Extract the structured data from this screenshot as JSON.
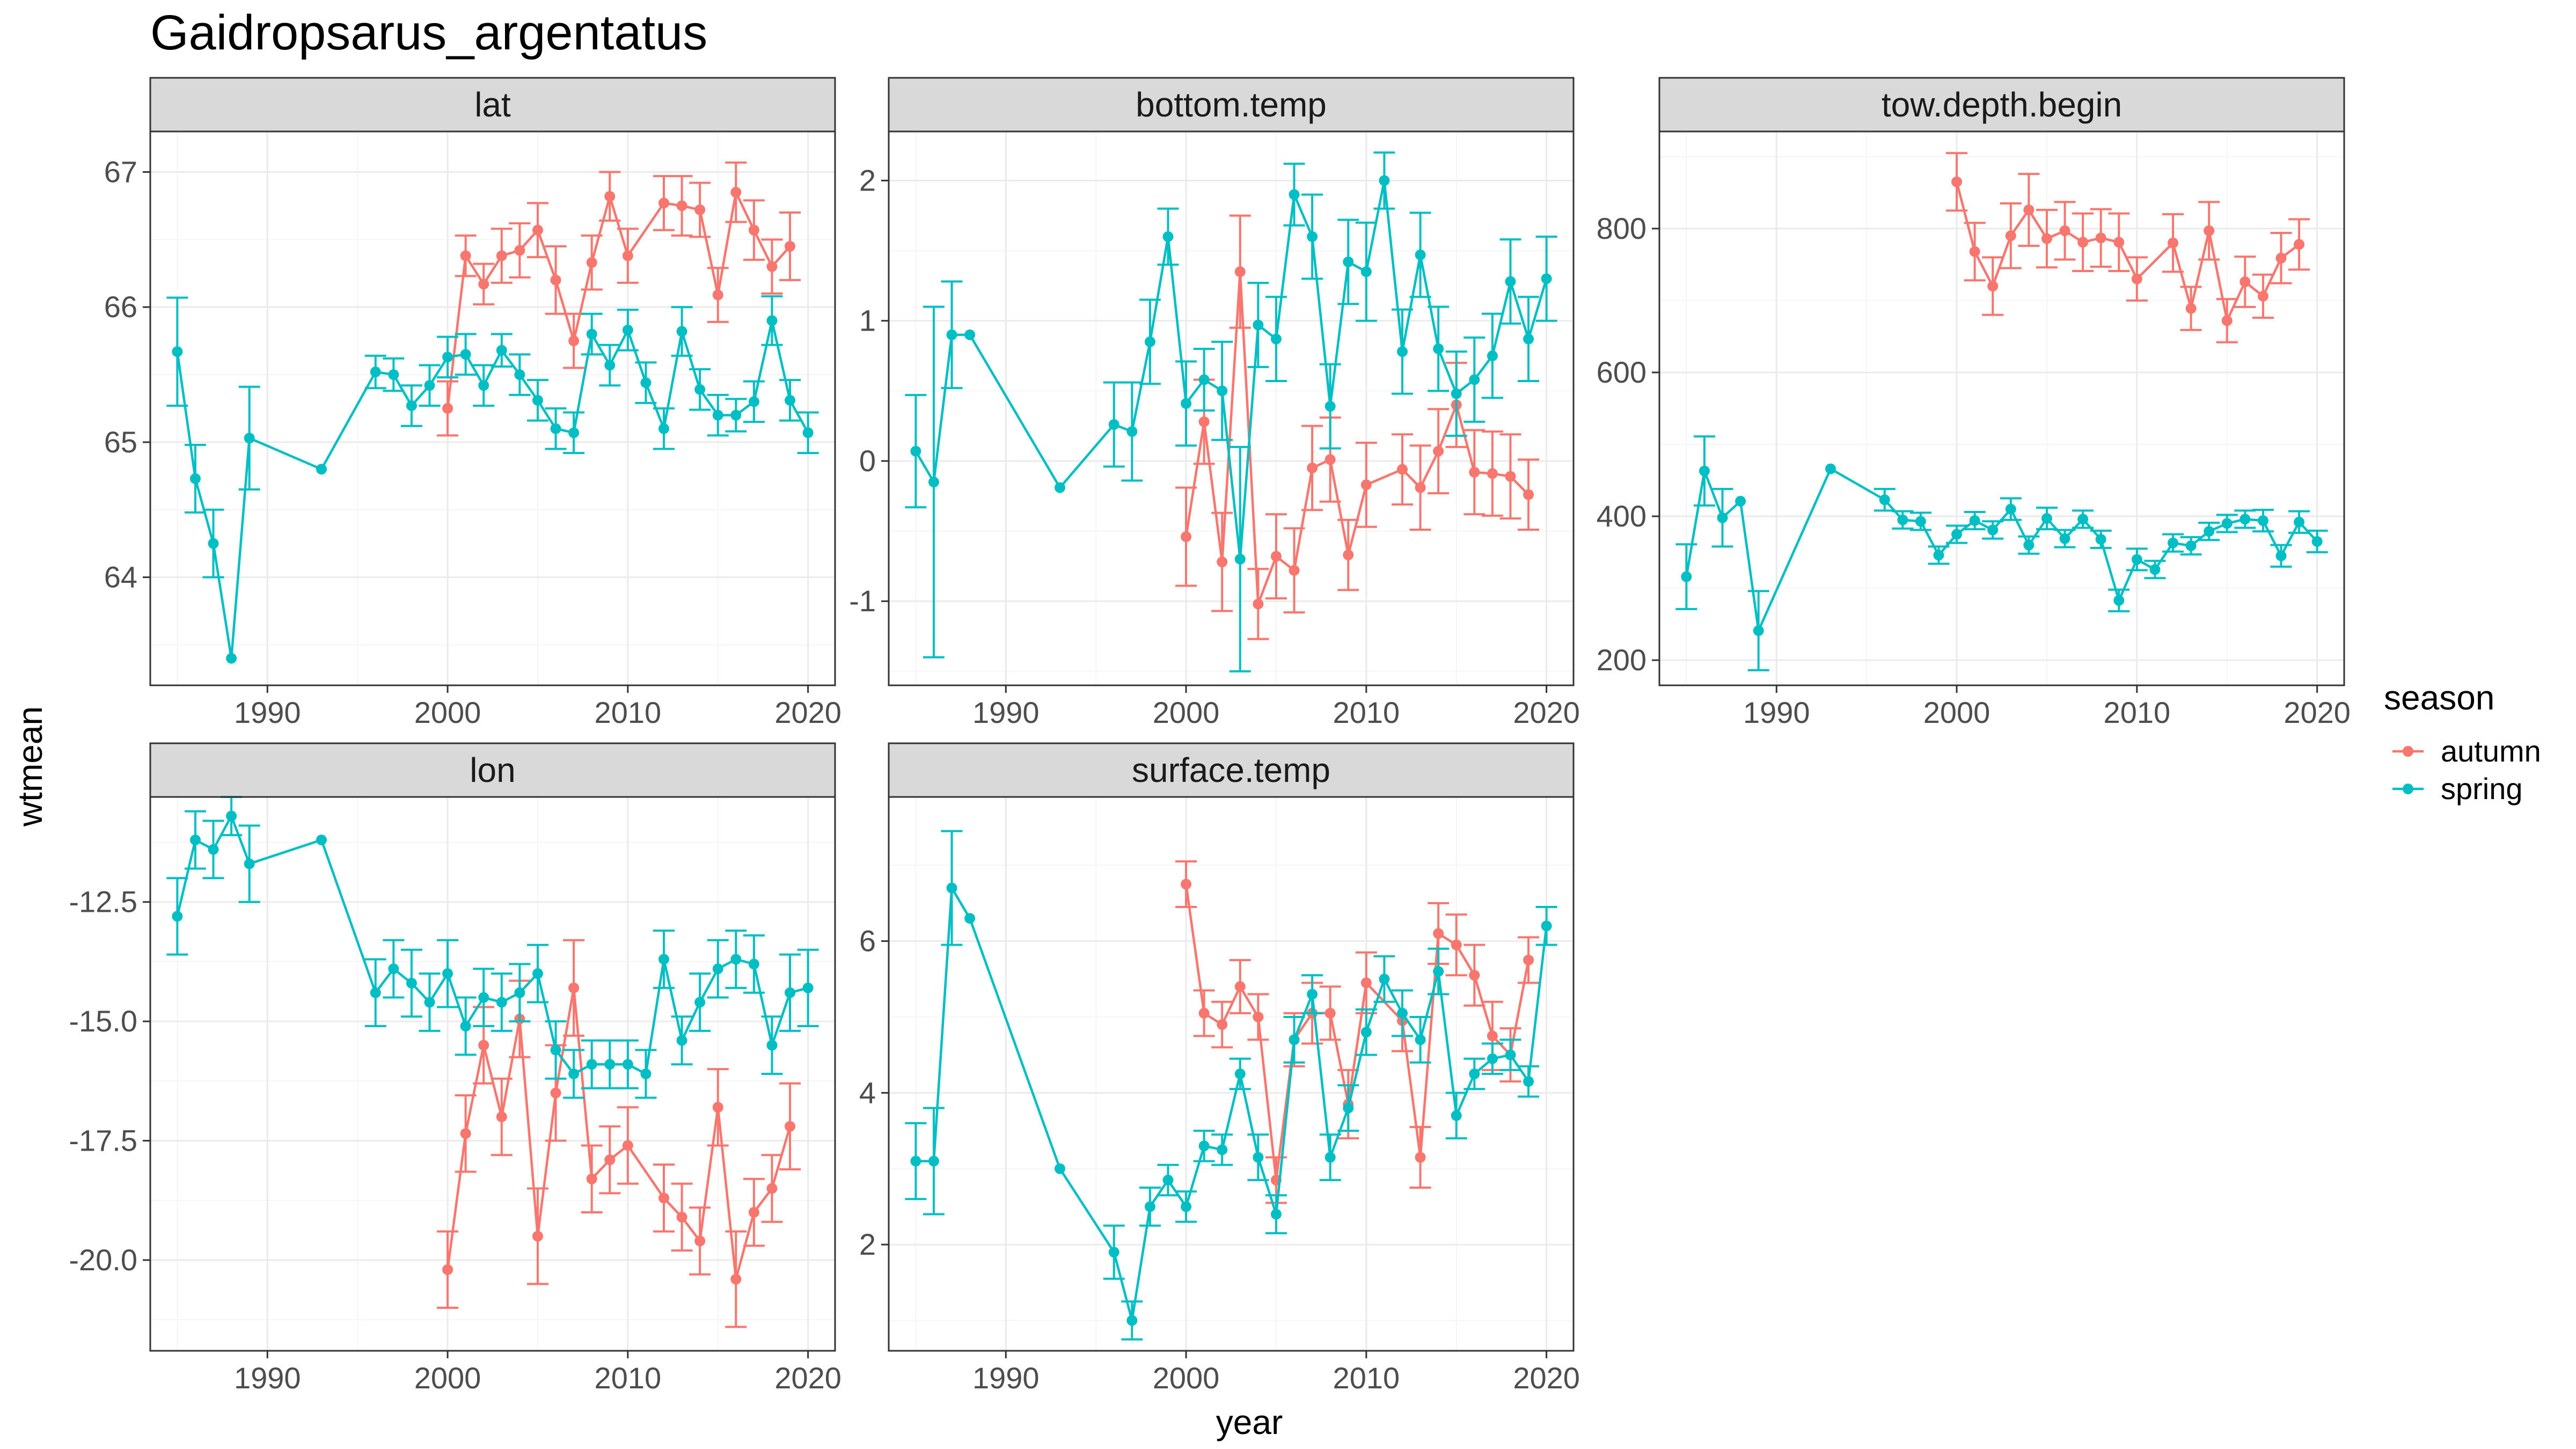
{
  "title": "Gaidropsarus_argentatus",
  "colors": {
    "autumn": "#F8766D",
    "spring": "#00BFC4"
  },
  "chart_data": {
    "type": "line",
    "title": "Gaidropsarus_argentatus",
    "xlabel": "year",
    "ylabel": "wtmean",
    "legend": {
      "title": "season",
      "position": "right",
      "entries": [
        "autumn",
        "spring"
      ]
    },
    "grid": true,
    "facets": [
      {
        "name": "lat",
        "xlim": [
          1983.5,
          2021.5
        ],
        "xticks": [
          1990,
          2000,
          2010,
          2020
        ],
        "ylim": [
          63.2,
          67.3
        ],
        "yticks": [
          64,
          65,
          66,
          67
        ],
        "ytick_labels": [
          "64",
          "65",
          "66",
          "67"
        ],
        "series": [
          {
            "name": "autumn",
            "x": [
              2000,
              2001,
              2002,
              2003,
              2004,
              2005,
              2006,
              2007,
              2008,
              2009,
              2010,
              2012,
              2013,
              2014,
              2015,
              2016,
              2017,
              2018,
              2019
            ],
            "y": [
              65.25,
              66.38,
              66.17,
              66.38,
              66.42,
              66.57,
              66.2,
              65.75,
              66.33,
              66.82,
              66.38,
              66.77,
              66.75,
              66.72,
              66.09,
              66.85,
              66.57,
              66.3,
              66.45
            ],
            "err": [
              0.2,
              0.15,
              0.15,
              0.2,
              0.2,
              0.2,
              0.25,
              0.2,
              0.2,
              0.18,
              0.2,
              0.2,
              0.22,
              0.2,
              0.2,
              0.22,
              0.22,
              0.2,
              0.25
            ]
          },
          {
            "name": "spring",
            "x": [
              1985,
              1986,
              1987,
              1988,
              1989,
              1993,
              1996,
              1997,
              1998,
              1999,
              2000,
              2001,
              2002,
              2003,
              2004,
              2005,
              2006,
              2007,
              2008,
              2009,
              2010,
              2011,
              2012,
              2013,
              2014,
              2015,
              2016,
              2017,
              2018,
              2019,
              2020
            ],
            "y": [
              65.67,
              64.73,
              64.25,
              63.4,
              65.03,
              64.8,
              65.52,
              65.5,
              65.27,
              65.42,
              65.63,
              65.65,
              65.42,
              65.68,
              65.5,
              65.31,
              65.1,
              65.07,
              65.8,
              65.57,
              65.83,
              65.44,
              65.1,
              65.82,
              65.39,
              65.2,
              65.2,
              65.3,
              65.9,
              65.31,
              65.07
            ],
            "err": [
              0.4,
              0.25,
              0.25,
              0,
              0.38,
              0,
              0.12,
              0.12,
              0.15,
              0.15,
              0.15,
              0.15,
              0.15,
              0.12,
              0.15,
              0.15,
              0.15,
              0.15,
              0.15,
              0.15,
              0.15,
              0.15,
              0.15,
              0.18,
              0.15,
              0.15,
              0.12,
              0.15,
              0.18,
              0.15,
              0.15
            ]
          }
        ]
      },
      {
        "name": "bottom.temp",
        "xlim": [
          1983.5,
          2021.5
        ],
        "xticks": [
          1990,
          2000,
          2010,
          2020
        ],
        "ylim": [
          -1.6,
          2.35
        ],
        "yticks": [
          -1,
          0,
          1,
          2
        ],
        "ytick_labels": [
          "-1",
          "0",
          "1",
          "2"
        ],
        "series": [
          {
            "name": "autumn",
            "x": [
              2000,
              2001,
              2002,
              2003,
              2004,
              2005,
              2006,
              2007,
              2008,
              2009,
              2010,
              2012,
              2013,
              2014,
              2015,
              2016,
              2017,
              2018,
              2019
            ],
            "y": [
              -0.54,
              0.28,
              -0.72,
              1.35,
              -1.02,
              -0.68,
              -0.78,
              -0.05,
              0.01,
              -0.67,
              -0.17,
              -0.06,
              -0.19,
              0.07,
              0.4,
              -0.08,
              -0.09,
              -0.11,
              -0.24
            ],
            "err": [
              0.35,
              0.3,
              0.35,
              0.4,
              0.25,
              0.3,
              0.3,
              0.3,
              0.3,
              0.25,
              0.3,
              0.25,
              0.3,
              0.3,
              0.3,
              0.3,
              0.3,
              0.3,
              0.25
            ]
          },
          {
            "name": "spring",
            "x": [
              1985,
              1986,
              1987,
              1988,
              1993,
              1996,
              1997,
              1998,
              1999,
              2000,
              2001,
              2002,
              2003,
              2004,
              2005,
              2006,
              2007,
              2008,
              2009,
              2010,
              2011,
              2012,
              2013,
              2014,
              2015,
              2016,
              2017,
              2018,
              2019,
              2020
            ],
            "y": [
              0.07,
              -0.15,
              0.9,
              0.9,
              -0.19,
              0.26,
              0.21,
              0.85,
              1.6,
              0.41,
              0.58,
              0.5,
              -0.7,
              0.97,
              0.87,
              1.9,
              1.6,
              0.39,
              1.42,
              1.35,
              2.0,
              0.78,
              1.47,
              0.8,
              0.48,
              0.58,
              0.75,
              1.28,
              0.87,
              1.3
            ],
            "err": [
              0.4,
              1.25,
              0.38,
              0,
              0,
              0.3,
              0.35,
              0.3,
              0.2,
              0.3,
              0.22,
              0.35,
              0.8,
              0.3,
              0.3,
              0.22,
              0.3,
              0.3,
              0.3,
              0.35,
              0.2,
              0.3,
              0.3,
              0.3,
              0.3,
              0.3,
              0.3,
              0.3,
              0.3,
              0.3
            ]
          }
        ]
      },
      {
        "name": "tow.depth.begin",
        "xlim": [
          1983.5,
          2021.5
        ],
        "xticks": [
          1990,
          2000,
          2010,
          2020
        ],
        "ylim": [
          165,
          935
        ],
        "yticks": [
          200,
          400,
          600,
          800
        ],
        "ytick_labels": [
          "200",
          "400",
          "600",
          "800"
        ],
        "series": [
          {
            "name": "autumn",
            "x": [
              2000,
              2001,
              2002,
              2003,
              2004,
              2005,
              2006,
              2007,
              2008,
              2009,
              2010,
              2012,
              2013,
              2014,
              2015,
              2016,
              2017,
              2018,
              2019
            ],
            "y": [
              865,
              768,
              720,
              790,
              826,
              786,
              797,
              781,
              787,
              781,
              730,
              780,
              689,
              797,
              672,
              726,
              706,
              759,
              778
            ],
            "err": [
              40,
              40,
              40,
              45,
              50,
              40,
              40,
              40,
              40,
              40,
              30,
              40,
              30,
              40,
              30,
              35,
              30,
              35,
              35
            ]
          },
          {
            "name": "spring",
            "x": [
              1985,
              1986,
              1987,
              1988,
              1989,
              1993,
              1996,
              1997,
              1998,
              1999,
              2000,
              2001,
              2002,
              2003,
              2004,
              2005,
              2006,
              2007,
              2008,
              2009,
              2010,
              2011,
              2012,
              2013,
              2014,
              2015,
              2016,
              2017,
              2018,
              2019,
              2020
            ],
            "y": [
              316,
              463,
              398,
              421,
              241,
              466,
              423,
              395,
              393,
              346,
              375,
              394,
              381,
              410,
              360,
              397,
              369,
              396,
              368,
              283,
              340,
              326,
              363,
              359,
              379,
              390,
              396,
              394,
              345,
              392,
              365
            ],
            "err": [
              45,
              48,
              40,
              0,
              55,
              0,
              15,
              12,
              12,
              12,
              12,
              12,
              12,
              15,
              12,
              15,
              12,
              12,
              12,
              15,
              15,
              12,
              12,
              12,
              12,
              12,
              12,
              15,
              15,
              15,
              15
            ]
          }
        ]
      },
      {
        "name": "lon",
        "xlim": [
          1983.5,
          2021.5
        ],
        "xticks": [
          1990,
          2000,
          2010,
          2020
        ],
        "ylim": [
          -21.9,
          -10.3
        ],
        "yticks": [
          -20,
          -17.5,
          -15,
          -12.5
        ],
        "ytick_labels": [
          "-20.0",
          "-17.5",
          "-15.0",
          "-12.5"
        ],
        "series": [
          {
            "name": "autumn",
            "x": [
              2000,
              2001,
              2002,
              2003,
              2004,
              2005,
              2006,
              2007,
              2008,
              2009,
              2010,
              2012,
              2013,
              2014,
              2015,
              2016,
              2017,
              2018,
              2019
            ],
            "y": [
              -20.2,
              -17.35,
              -15.5,
              -17.0,
              -14.95,
              -19.5,
              -16.5,
              -14.3,
              -18.3,
              -17.9,
              -17.6,
              -18.7,
              -19.1,
              -19.6,
              -16.8,
              -20.4,
              -19.0,
              -18.5,
              -17.2
            ],
            "err": [
              0.8,
              0.8,
              0.8,
              0.8,
              0.8,
              1.0,
              1.0,
              1.0,
              0.7,
              0.7,
              0.8,
              0.7,
              0.7,
              0.7,
              0.8,
              1.0,
              0.7,
              0.7,
              0.9
            ]
          },
          {
            "name": "spring",
            "x": [
              1985,
              1986,
              1987,
              1988,
              1989,
              1993,
              1996,
              1997,
              1998,
              1999,
              2000,
              2001,
              2002,
              2003,
              2004,
              2005,
              2006,
              2007,
              2008,
              2009,
              2010,
              2011,
              2012,
              2013,
              2014,
              2015,
              2016,
              2017,
              2018,
              2019,
              2020
            ],
            "y": [
              -12.8,
              -11.2,
              -11.4,
              -10.7,
              -11.7,
              -11.2,
              -14.4,
              -13.9,
              -14.2,
              -14.6,
              -14.0,
              -15.1,
              -14.5,
              -14.6,
              -14.4,
              -14.0,
              -15.6,
              -16.1,
              -15.9,
              -15.9,
              -15.9,
              -16.1,
              -13.7,
              -15.4,
              -14.6,
              -13.9,
              -13.7,
              -13.8,
              -15.5,
              -14.4,
              -14.3
            ],
            "err": [
              0.8,
              0.6,
              0.6,
              0.4,
              0.8,
              0,
              0.7,
              0.6,
              0.7,
              0.6,
              0.7,
              0.6,
              0.6,
              0.6,
              0.6,
              0.6,
              0.6,
              0.5,
              0.5,
              0.5,
              0.5,
              0.5,
              0.6,
              0.5,
              0.6,
              0.6,
              0.6,
              0.6,
              0.6,
              0.8,
              0.8
            ]
          }
        ]
      },
      {
        "name": "surface.temp",
        "xlim": [
          1983.5,
          2021.5
        ],
        "xticks": [
          1990,
          2000,
          2010,
          2020
        ],
        "ylim": [
          0.6,
          7.9
        ],
        "yticks": [
          2,
          4,
          6
        ],
        "ytick_labels": [
          "2",
          "4",
          "6"
        ],
        "series": [
          {
            "name": "autumn",
            "x": [
              2000,
              2001,
              2002,
              2003,
              2004,
              2005,
              2006,
              2007,
              2008,
              2009,
              2010,
              2012,
              2013,
              2014,
              2015,
              2016,
              2017,
              2018,
              2019
            ],
            "y": [
              6.75,
              5.05,
              4.9,
              5.4,
              5.0,
              2.85,
              4.7,
              5.05,
              5.05,
              3.85,
              5.45,
              4.95,
              3.15,
              6.1,
              5.95,
              5.55,
              4.75,
              4.5,
              5.75
            ],
            "err": [
              0.3,
              0.3,
              0.3,
              0.35,
              0.3,
              0.3,
              0.35,
              0.4,
              0.35,
              0.45,
              0.4,
              0.4,
              0.4,
              0.4,
              0.4,
              0.4,
              0.45,
              0.35,
              0.3
            ]
          },
          {
            "name": "spring",
            "x": [
              1985,
              1986,
              1987,
              1988,
              1993,
              1996,
              1997,
              1998,
              1999,
              2000,
              2001,
              2002,
              2003,
              2004,
              2005,
              2006,
              2007,
              2008,
              2009,
              2010,
              2011,
              2012,
              2013,
              2014,
              2015,
              2016,
              2017,
              2018,
              2019,
              2020
            ],
            "y": [
              3.1,
              3.1,
              6.7,
              6.3,
              3.0,
              1.9,
              1.0,
              2.5,
              2.85,
              2.5,
              3.3,
              3.25,
              4.25,
              3.15,
              2.4,
              4.7,
              5.3,
              3.15,
              3.8,
              4.8,
              5.5,
              5.05,
              4.7,
              5.6,
              3.7,
              4.25,
              4.45,
              4.5,
              4.15,
              6.2
            ],
            "err": [
              0.5,
              0.7,
              0.75,
              0,
              0,
              0.35,
              0.25,
              0.25,
              0.2,
              0.2,
              0.2,
              0.2,
              0.2,
              0.3,
              0.25,
              0.3,
              0.25,
              0.3,
              0.3,
              0.3,
              0.3,
              0.3,
              0.3,
              0.3,
              0.3,
              0.2,
              0.2,
              0.2,
              0.2,
              0.25
            ]
          }
        ]
      }
    ]
  }
}
